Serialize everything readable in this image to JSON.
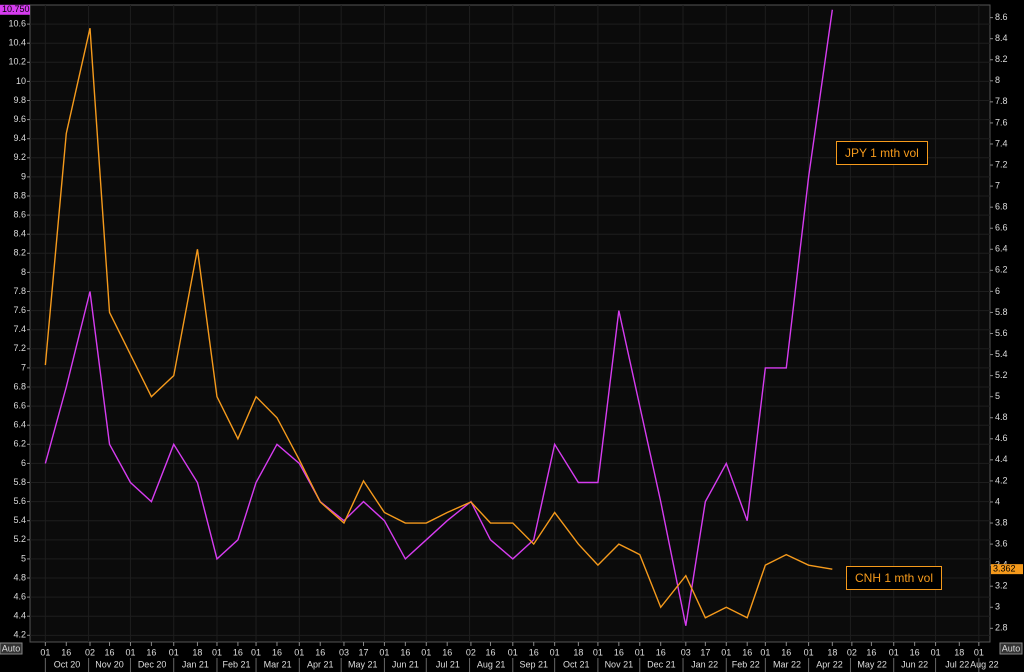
{
  "chart_data": {
    "type": "line",
    "x": [
      "2020-10-01",
      "2020-10-16",
      "2020-11-02",
      "2020-11-16",
      "2020-12-01",
      "2020-12-16",
      "2021-01-01",
      "2021-01-18",
      "2021-02-01",
      "2021-02-16",
      "2021-03-01",
      "2021-03-16",
      "2021-04-01",
      "2021-04-16",
      "2021-05-03",
      "2021-05-17",
      "2021-06-01",
      "2021-06-16",
      "2021-07-01",
      "2021-07-16",
      "2021-08-02",
      "2021-08-16",
      "2021-09-01",
      "2021-09-16",
      "2021-10-01",
      "2021-10-18",
      "2021-11-01",
      "2021-11-16",
      "2021-12-01",
      "2021-12-16",
      "2022-01-03",
      "2022-01-17",
      "2022-02-01",
      "2022-02-16",
      "2022-03-01",
      "2022-03-16",
      "2022-04-01",
      "2022-04-18"
    ],
    "series": [
      {
        "name": "JPY 1 mth vol",
        "color": "#d63cf0",
        "axis": "y",
        "values": [
          6.0,
          6.8,
          7.8,
          6.2,
          5.8,
          5.6,
          6.2,
          5.8,
          5.0,
          5.2,
          5.8,
          6.2,
          6.0,
          5.6,
          5.4,
          5.6,
          5.4,
          5.0,
          5.2,
          5.4,
          5.6,
          5.2,
          5.0,
          5.2,
          6.2,
          5.8,
          5.8,
          7.6,
          6.6,
          5.6,
          4.3,
          5.6,
          6.0,
          5.4,
          7.0,
          7.0,
          9.0,
          10.75
        ],
        "value_labels": [
          null,
          null,
          null,
          null,
          null,
          null,
          null,
          null,
          null,
          null,
          null,
          null,
          null,
          null,
          null,
          null,
          null,
          null,
          null,
          null,
          null,
          null,
          null,
          null,
          null,
          null,
          null,
          null,
          null,
          null,
          null,
          null,
          null,
          null,
          null,
          null,
          null,
          "10.750"
        ]
      },
      {
        "name": "CNH 1 mth vol",
        "color": "#f59a1c",
        "axis": "y2",
        "values": [
          5.3,
          7.5,
          8.5,
          5.8,
          5.4,
          5.0,
          5.2,
          6.4,
          5.0,
          4.6,
          5.0,
          4.8,
          4.4,
          4.0,
          3.8,
          4.2,
          3.9,
          3.8,
          3.8,
          3.9,
          4.0,
          3.8,
          3.8,
          3.6,
          3.9,
          3.6,
          3.4,
          3.6,
          3.5,
          3.0,
          3.3,
          2.9,
          3.0,
          2.9,
          3.4,
          3.5,
          3.4,
          3.362
        ],
        "value_labels": [
          null,
          null,
          null,
          null,
          null,
          null,
          null,
          null,
          null,
          null,
          null,
          null,
          null,
          null,
          null,
          null,
          null,
          null,
          null,
          null,
          null,
          null,
          null,
          null,
          null,
          null,
          null,
          null,
          null,
          null,
          null,
          null,
          null,
          null,
          null,
          null,
          null,
          "3.362"
        ]
      }
    ],
    "xlim": [
      "2020-09-20",
      "2022-08-09"
    ],
    "xticks": [
      {
        "value": "2020-10-01",
        "label": "01"
      },
      {
        "value": "2020-10-16",
        "label": "16"
      },
      {
        "value": "2020-11-02",
        "label": "02"
      },
      {
        "value": "2020-11-16",
        "label": "16"
      },
      {
        "value": "2020-12-01",
        "label": "01"
      },
      {
        "value": "2020-12-16",
        "label": "16"
      },
      {
        "value": "2021-01-01",
        "label": "01"
      },
      {
        "value": "2021-01-18",
        "label": "18"
      },
      {
        "value": "2021-02-01",
        "label": "01"
      },
      {
        "value": "2021-02-16",
        "label": "16"
      },
      {
        "value": "2021-03-01",
        "label": "01"
      },
      {
        "value": "2021-03-16",
        "label": "16"
      },
      {
        "value": "2021-04-01",
        "label": "01"
      },
      {
        "value": "2021-04-16",
        "label": "16"
      },
      {
        "value": "2021-05-03",
        "label": "03"
      },
      {
        "value": "2021-05-17",
        "label": "17"
      },
      {
        "value": "2021-06-01",
        "label": "01"
      },
      {
        "value": "2021-06-16",
        "label": "16"
      },
      {
        "value": "2021-07-01",
        "label": "01"
      },
      {
        "value": "2021-07-16",
        "label": "16"
      },
      {
        "value": "2021-08-02",
        "label": "02"
      },
      {
        "value": "2021-08-16",
        "label": "16"
      },
      {
        "value": "2021-09-01",
        "label": "01"
      },
      {
        "value": "2021-09-16",
        "label": "16"
      },
      {
        "value": "2021-10-01",
        "label": "01"
      },
      {
        "value": "2021-10-18",
        "label": "18"
      },
      {
        "value": "2021-11-01",
        "label": "01"
      },
      {
        "value": "2021-11-16",
        "label": "16"
      },
      {
        "value": "2021-12-01",
        "label": "01"
      },
      {
        "value": "2021-12-16",
        "label": "16"
      },
      {
        "value": "2022-01-03",
        "label": "03"
      },
      {
        "value": "2022-01-17",
        "label": "17"
      },
      {
        "value": "2022-02-01",
        "label": "01"
      },
      {
        "value": "2022-02-16",
        "label": "16"
      },
      {
        "value": "2022-03-01",
        "label": "01"
      },
      {
        "value": "2022-03-16",
        "label": "16"
      },
      {
        "value": "2022-04-01",
        "label": "01"
      },
      {
        "value": "2022-04-18",
        "label": "18"
      },
      {
        "value": "2022-05-02",
        "label": "02"
      },
      {
        "value": "2022-05-16",
        "label": "16"
      },
      {
        "value": "2022-06-01",
        "label": "01"
      },
      {
        "value": "2022-06-16",
        "label": "16"
      },
      {
        "value": "2022-07-01",
        "label": "01"
      },
      {
        "value": "2022-07-18",
        "label": "18"
      },
      {
        "value": "2022-08-01",
        "label": "01"
      }
    ],
    "month_labels": [
      {
        "value": "2020-10",
        "label": "Oct 20"
      },
      {
        "value": "2020-11",
        "label": "Nov 20"
      },
      {
        "value": "2020-12",
        "label": "Dec 20"
      },
      {
        "value": "2021-01",
        "label": "Jan 21"
      },
      {
        "value": "2021-02",
        "label": "Feb 21"
      },
      {
        "value": "2021-03",
        "label": "Mar 21"
      },
      {
        "value": "2021-04",
        "label": "Apr 21"
      },
      {
        "value": "2021-05",
        "label": "May 21"
      },
      {
        "value": "2021-06",
        "label": "Jun 21"
      },
      {
        "value": "2021-07",
        "label": "Jul 21"
      },
      {
        "value": "2021-08",
        "label": "Aug 21"
      },
      {
        "value": "2021-09",
        "label": "Sep 21"
      },
      {
        "value": "2021-10",
        "label": "Oct 21"
      },
      {
        "value": "2021-11",
        "label": "Nov 21"
      },
      {
        "value": "2021-12",
        "label": "Dec 21"
      },
      {
        "value": "2022-01",
        "label": "Jan 22"
      },
      {
        "value": "2022-02",
        "label": "Feb 22"
      },
      {
        "value": "2022-03",
        "label": "Mar 22"
      },
      {
        "value": "2022-04",
        "label": "Apr 22"
      },
      {
        "value": "2022-05",
        "label": "May 22"
      },
      {
        "value": "2022-06",
        "label": "Jun 22"
      },
      {
        "value": "2022-07",
        "label": "Jul 22"
      },
      {
        "value": "2022-08",
        "label": "Aug 22"
      }
    ],
    "ylim": [
      4.13,
      10.8
    ],
    "yticks": [
      4.2,
      4.4,
      4.6,
      4.8,
      5,
      5.2,
      5.4,
      5.6,
      5.8,
      6,
      6.2,
      6.4,
      6.6,
      6.8,
      7,
      7.2,
      7.4,
      7.6,
      7.8,
      8,
      8.2,
      8.4,
      8.6,
      8.8,
      9,
      9.2,
      9.4,
      9.6,
      9.8,
      10,
      10.2,
      10.4,
      10.6
    ],
    "y2lim": [
      2.67,
      8.72
    ],
    "y2ticks": [
      2.8,
      3,
      3.2,
      3.4,
      3.6,
      3.8,
      4,
      4.2,
      4.4,
      4.6,
      4.8,
      5,
      5.2,
      5.4,
      5.6,
      5.8,
      6,
      6.2,
      6.4,
      6.6,
      6.8,
      7,
      7.2,
      7.4,
      7.6,
      7.8,
      8,
      8.2,
      8.4,
      8.6
    ],
    "grid": true,
    "axis_buttons": [
      "Auto",
      "Auto"
    ]
  }
}
